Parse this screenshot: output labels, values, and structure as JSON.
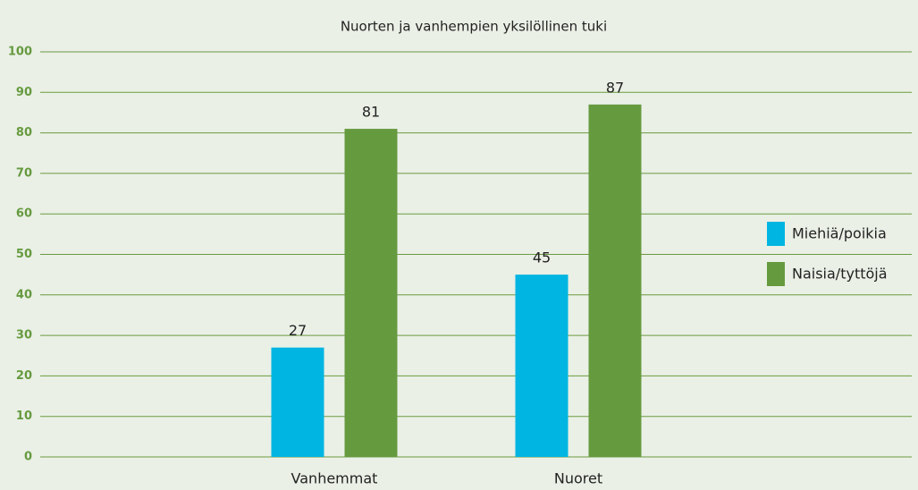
{
  "chart_data": {
    "type": "bar",
    "title": "Nuorten ja vanhempien yksilöllinen tuki",
    "categories": [
      "Vanhemmat",
      "Nuoret"
    ],
    "series": [
      {
        "name": "Miehiä/poikia",
        "color": "#00b5e2",
        "values": [
          27,
          45
        ]
      },
      {
        "name": "Naisia/tyttöjä",
        "color": "#669a3f",
        "values": [
          81,
          87
        ]
      }
    ],
    "ylim": [
      0,
      100
    ],
    "yticks": [
      0,
      10,
      20,
      30,
      40,
      50,
      60,
      70,
      80,
      90,
      100
    ],
    "grid": true,
    "legend": "right"
  }
}
